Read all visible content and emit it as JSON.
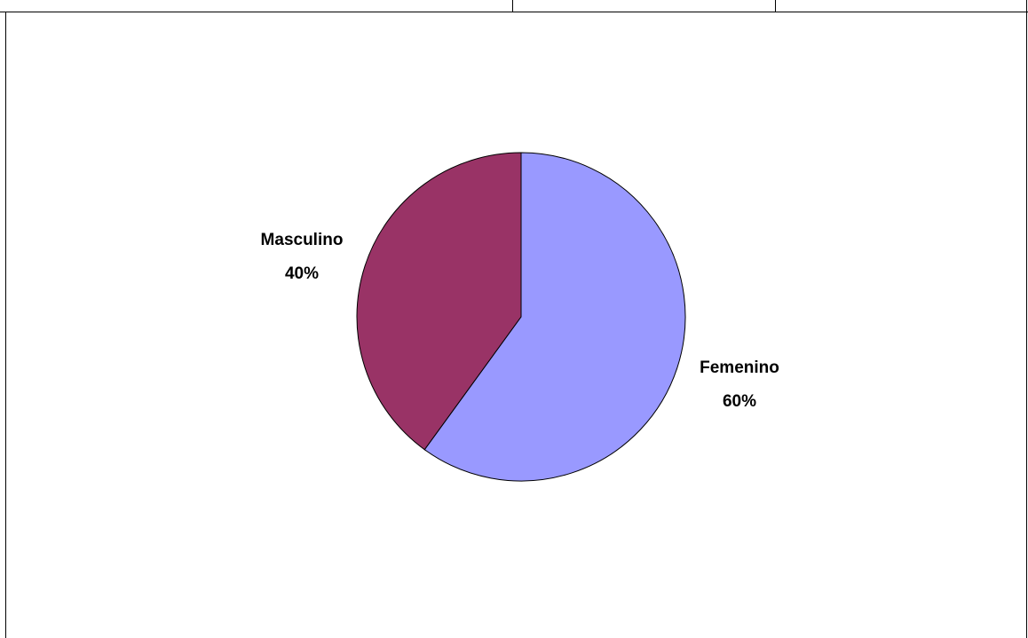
{
  "chart_data": {
    "type": "pie",
    "categories": [
      "Femenino",
      "Masculino"
    ],
    "values": [
      60,
      40
    ],
    "percent_labels": [
      "60%",
      "40%"
    ],
    "colors": [
      "#9999FF",
      "#993366"
    ],
    "legend": "none",
    "title": ""
  }
}
